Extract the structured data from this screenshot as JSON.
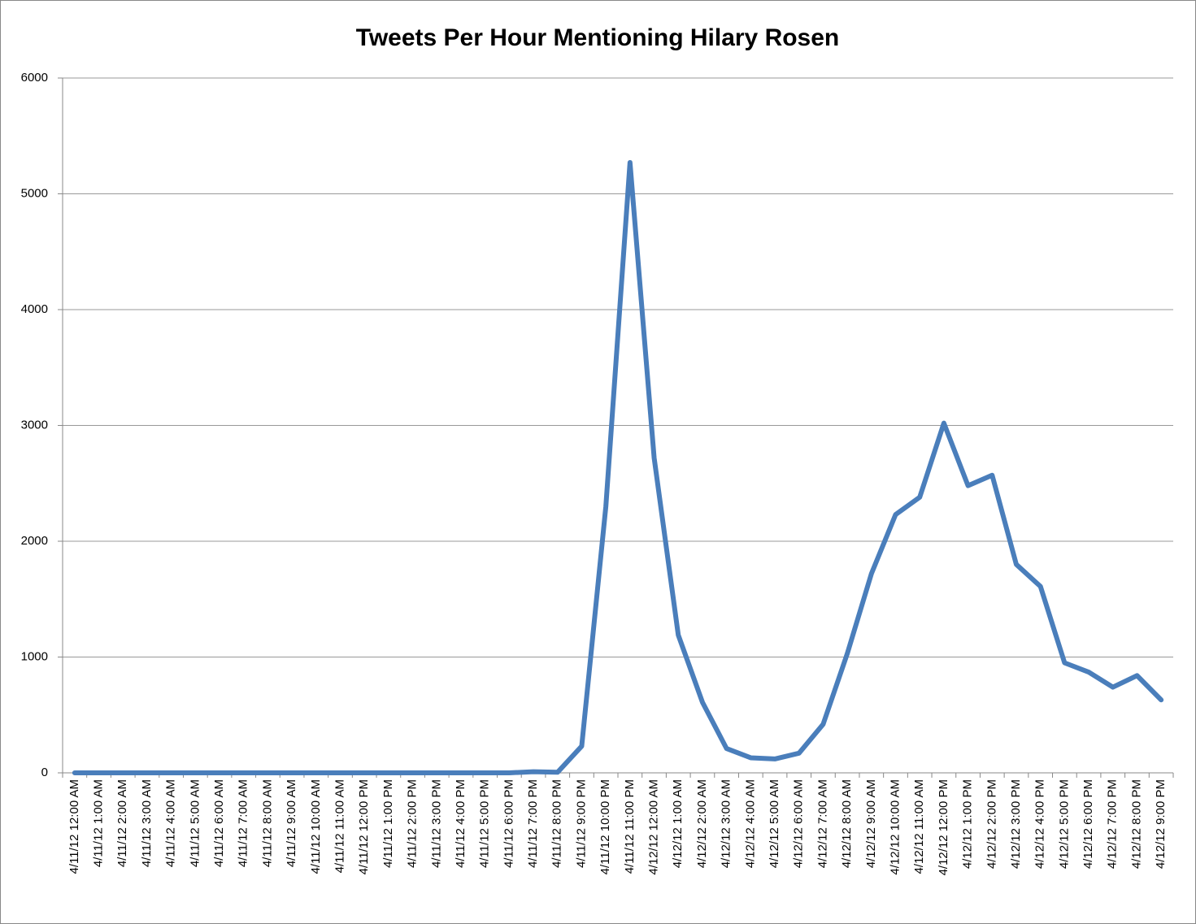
{
  "chart_data": {
    "type": "line",
    "title": "Tweets Per Hour Mentioning Hilary Rosen",
    "categories": [
      "4/11/12 12:00 AM",
      "4/11/12 1:00 AM",
      "4/11/12 2:00 AM",
      "4/11/12 3:00 AM",
      "4/11/12 4:00 AM",
      "4/11/12 5:00 AM",
      "4/11/12 6:00 AM",
      "4/11/12 7:00 AM",
      "4/11/12 8:00 AM",
      "4/11/12 9:00 AM",
      "4/11/12 10:00 AM",
      "4/11/12 11:00 AM",
      "4/11/12 12:00 PM",
      "4/11/12 1:00 PM",
      "4/11/12 2:00 PM",
      "4/11/12 3:00 PM",
      "4/11/12 4:00 PM",
      "4/11/12 5:00 PM",
      "4/11/12 6:00 PM",
      "4/11/12 7:00 PM",
      "4/11/12 8:00 PM",
      "4/11/12 9:00 PM",
      "4/11/12 10:00 PM",
      "4/11/12 11:00 PM",
      "4/12/12 12:00 AM",
      "4/12/12 1:00 AM",
      "4/12/12 2:00 AM",
      "4/12/12 3:00 AM",
      "4/12/12 4:00 AM",
      "4/12/12 5:00 AM",
      "4/12/12 6:00 AM",
      "4/12/12 7:00 AM",
      "4/12/12 8:00 AM",
      "4/12/12 9:00 AM",
      "4/12/12 10:00 AM",
      "4/12/12 11:00 AM",
      "4/12/12 12:00 PM",
      "4/12/12 1:00 PM",
      "4/12/12 2:00 PM",
      "4/12/12 3:00 PM",
      "4/12/12 4:00 PM",
      "4/12/12 5:00 PM",
      "4/12/12 6:00 PM",
      "4/12/12 7:00 PM",
      "4/12/12 8:00 PM",
      "4/12/12 9:00 PM"
    ],
    "values": [
      0,
      0,
      0,
      0,
      0,
      0,
      0,
      0,
      0,
      0,
      0,
      0,
      0,
      0,
      0,
      0,
      0,
      0,
      0,
      10,
      5,
      230,
      2300,
      5270,
      2720,
      1190,
      610,
      210,
      130,
      120,
      170,
      420,
      1030,
      1720,
      2230,
      2380,
      3020,
      2480,
      2570,
      1800,
      1610,
      950,
      870,
      740,
      840,
      630
    ],
    "color": "#4a7ebb",
    "ylim": [
      0,
      6000
    ],
    "yticks": [
      0,
      1000,
      2000,
      3000,
      4000,
      5000,
      6000
    ],
    "grid": true
  }
}
